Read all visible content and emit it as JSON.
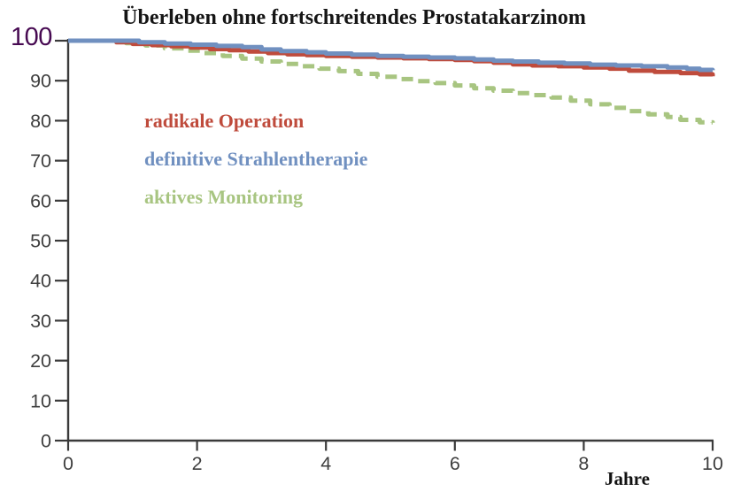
{
  "title": "Überleben ohne fortschreitendes Prostatakarzinom",
  "legend": [
    {
      "label": "radikale Operation",
      "color": "#bf4b3c"
    },
    {
      "label": "definitive Strahlentherapie",
      "color": "#7090c0"
    },
    {
      "label": "aktives Monitoring",
      "color": "#a8c581"
    }
  ],
  "axes": {
    "x": {
      "label": "Jahre",
      "ticks": [
        0,
        2,
        4,
        6,
        8,
        10
      ],
      "min": 0,
      "max": 10
    },
    "y": {
      "ticks": [
        0,
        10,
        20,
        30,
        40,
        50,
        60,
        70,
        80,
        90
      ],
      "highlight_tick": {
        "text": "100",
        "value": 100,
        "color": "#470a52"
      },
      "min": 0,
      "max": 100
    }
  },
  "style": {
    "axis_color": "#3a3a3a",
    "tick_label_color": "#3f3f3f",
    "background": "#ffffff"
  },
  "chart_data": {
    "type": "line",
    "subtype": "kaplan-meier-step",
    "title": "Überleben ohne fortschreitendes Prostatakarzinom",
    "xlabel": "Jahre",
    "ylabel": "",
    "xlim": [
      0,
      10
    ],
    "ylim": [
      0,
      100
    ],
    "x_ticks": [
      0,
      2,
      4,
      6,
      8,
      10
    ],
    "y_ticks": [
      0,
      10,
      20,
      30,
      40,
      50,
      60,
      70,
      80,
      90,
      100
    ],
    "grid": false,
    "legend_position": "upper-left-inside",
    "series": [
      {
        "name": "radikale Operation",
        "color": "#bf4b3c",
        "style": "solid",
        "line_width": 5,
        "points": [
          [
            0,
            100
          ],
          [
            0.6,
            100
          ],
          [
            0.75,
            99.6
          ],
          [
            1.0,
            99.2
          ],
          [
            1.3,
            98.9
          ],
          [
            1.6,
            98.6
          ],
          [
            1.9,
            98.3
          ],
          [
            2.2,
            97.9
          ],
          [
            2.5,
            97.6
          ],
          [
            2.8,
            97.3
          ],
          [
            3.1,
            96.9
          ],
          [
            3.4,
            96.6
          ],
          [
            3.7,
            96.4
          ],
          [
            4.0,
            96.2
          ],
          [
            4.4,
            96.0
          ],
          [
            4.8,
            95.8
          ],
          [
            5.2,
            95.6
          ],
          [
            5.6,
            95.4
          ],
          [
            6.0,
            95.2
          ],
          [
            6.3,
            94.9
          ],
          [
            6.6,
            94.5
          ],
          [
            6.9,
            94.1
          ],
          [
            7.2,
            93.8
          ],
          [
            7.6,
            93.6
          ],
          [
            8.0,
            93.3
          ],
          [
            8.4,
            93.0
          ],
          [
            8.7,
            92.5
          ],
          [
            9.1,
            92.2
          ],
          [
            9.5,
            91.9
          ],
          [
            9.8,
            91.6
          ],
          [
            10,
            91.1
          ]
        ]
      },
      {
        "name": "definitive Strahlentherapie",
        "color": "#7090c0",
        "style": "solid",
        "line_width": 5,
        "points": [
          [
            0,
            100
          ],
          [
            0.85,
            100
          ],
          [
            1.1,
            99.6
          ],
          [
            1.5,
            99.3
          ],
          [
            1.9,
            99.0
          ],
          [
            2.3,
            98.7
          ],
          [
            2.7,
            98.4
          ],
          [
            3.0,
            97.8
          ],
          [
            3.3,
            97.4
          ],
          [
            3.7,
            97.1
          ],
          [
            4.0,
            96.8
          ],
          [
            4.4,
            96.5
          ],
          [
            4.8,
            96.2
          ],
          [
            5.2,
            96.0
          ],
          [
            5.6,
            95.8
          ],
          [
            6.0,
            95.6
          ],
          [
            6.3,
            95.3
          ],
          [
            6.6,
            95.0
          ],
          [
            6.9,
            94.8
          ],
          [
            7.3,
            94.5
          ],
          [
            7.7,
            94.3
          ],
          [
            8.1,
            94.0
          ],
          [
            8.5,
            93.8
          ],
          [
            8.9,
            93.6
          ],
          [
            9.3,
            93.3
          ],
          [
            9.6,
            93.0
          ],
          [
            9.8,
            92.7
          ],
          [
            10,
            92.6
          ]
        ]
      },
      {
        "name": "aktives Monitoring",
        "color": "#a8c581",
        "style": "dashed",
        "line_width": 5,
        "points": [
          [
            0,
            100
          ],
          [
            0.7,
            100
          ],
          [
            0.9,
            99.4
          ],
          [
            1.2,
            98.8
          ],
          [
            1.5,
            98.1
          ],
          [
            1.8,
            97.5
          ],
          [
            2.1,
            96.9
          ],
          [
            2.4,
            96.2
          ],
          [
            2.7,
            95.5
          ],
          [
            3.0,
            94.8
          ],
          [
            3.3,
            94.2
          ],
          [
            3.6,
            93.6
          ],
          [
            3.9,
            93.0
          ],
          [
            4.2,
            92.4
          ],
          [
            4.5,
            91.7
          ],
          [
            4.8,
            91.0
          ],
          [
            5.1,
            90.4
          ],
          [
            5.4,
            89.9
          ],
          [
            5.7,
            89.4
          ],
          [
            6.0,
            88.8
          ],
          [
            6.3,
            88.1
          ],
          [
            6.6,
            87.5
          ],
          [
            6.9,
            86.9
          ],
          [
            7.2,
            86.4
          ],
          [
            7.5,
            85.8
          ],
          [
            7.8,
            85.0
          ],
          [
            8.1,
            84.1
          ],
          [
            8.4,
            83.2
          ],
          [
            8.7,
            82.4
          ],
          [
            9.0,
            81.6
          ],
          [
            9.3,
            80.9
          ],
          [
            9.5,
            80.2
          ],
          [
            9.8,
            79.6
          ],
          [
            10,
            79.5
          ]
        ]
      }
    ]
  }
}
